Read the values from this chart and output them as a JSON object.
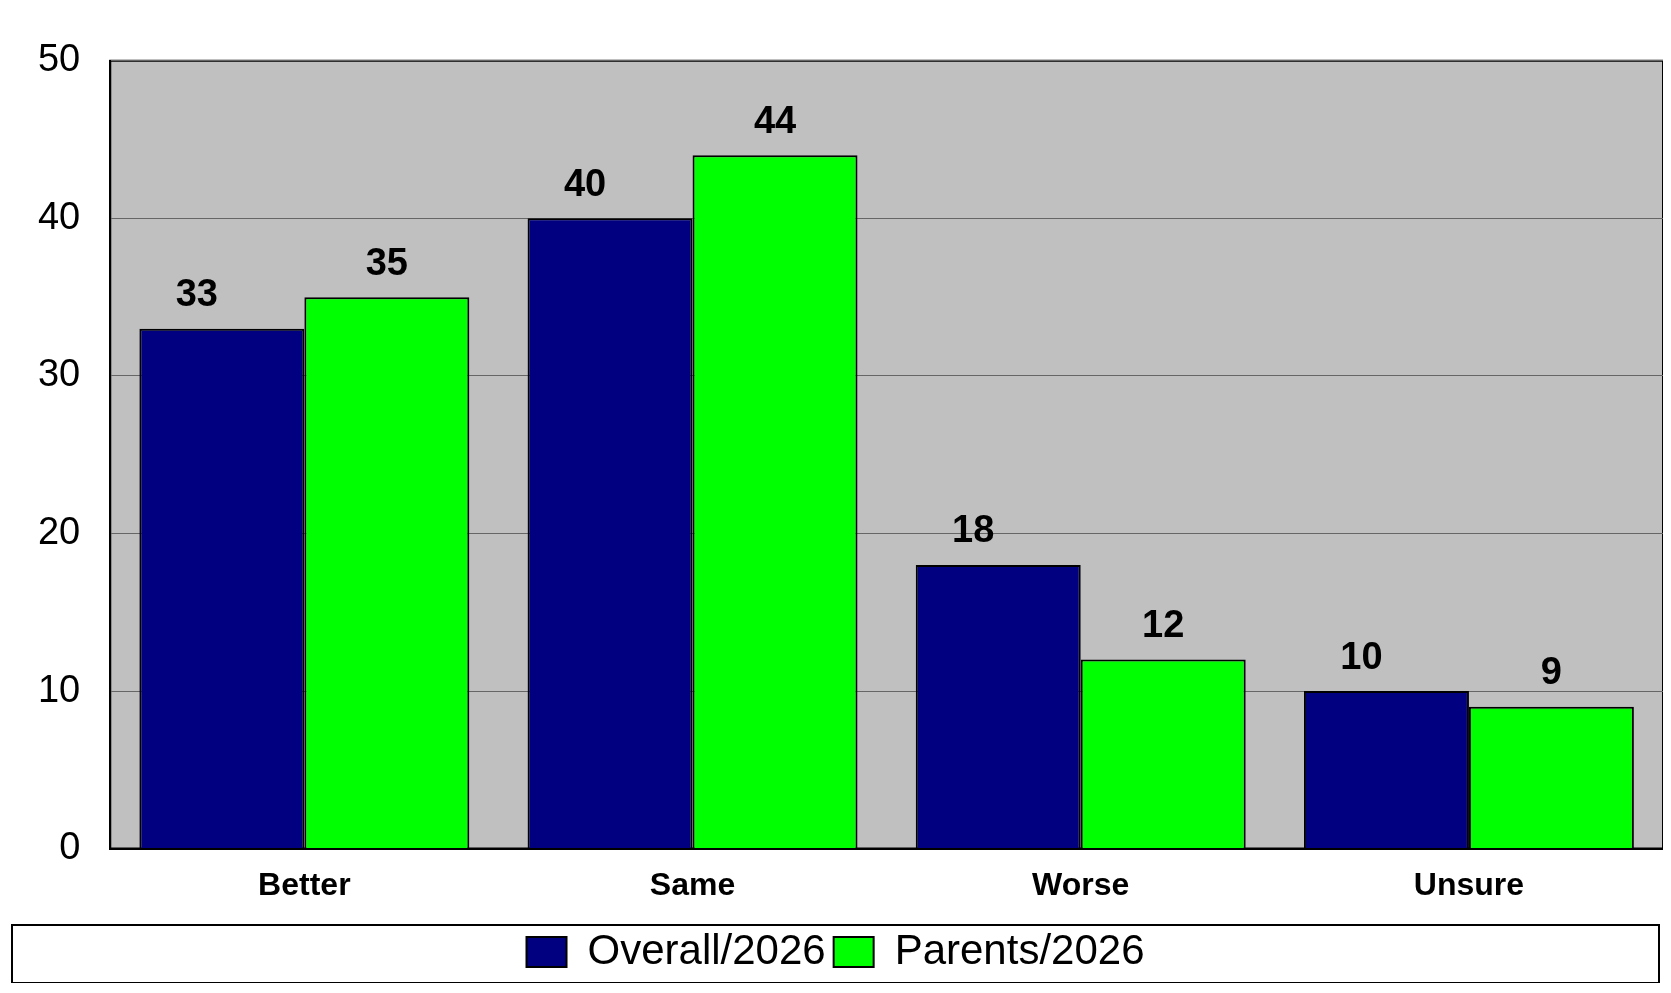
{
  "chart_data": {
    "type": "bar",
    "categories": [
      "Better",
      "Same",
      "Worse",
      "Unsure"
    ],
    "series": [
      {
        "name": "Overall/2026",
        "color": "#000080",
        "values": [
          33,
          40,
          18,
          10
        ]
      },
      {
        "name": "Parents/2026",
        "color": "#00ff00",
        "values": [
          35,
          44,
          12,
          9
        ]
      }
    ],
    "ylim": [
      0,
      50
    ],
    "yticks": [
      0,
      10,
      20,
      30,
      40,
      50
    ],
    "grid": "y",
    "legend": "bottom",
    "data_labels": true
  }
}
